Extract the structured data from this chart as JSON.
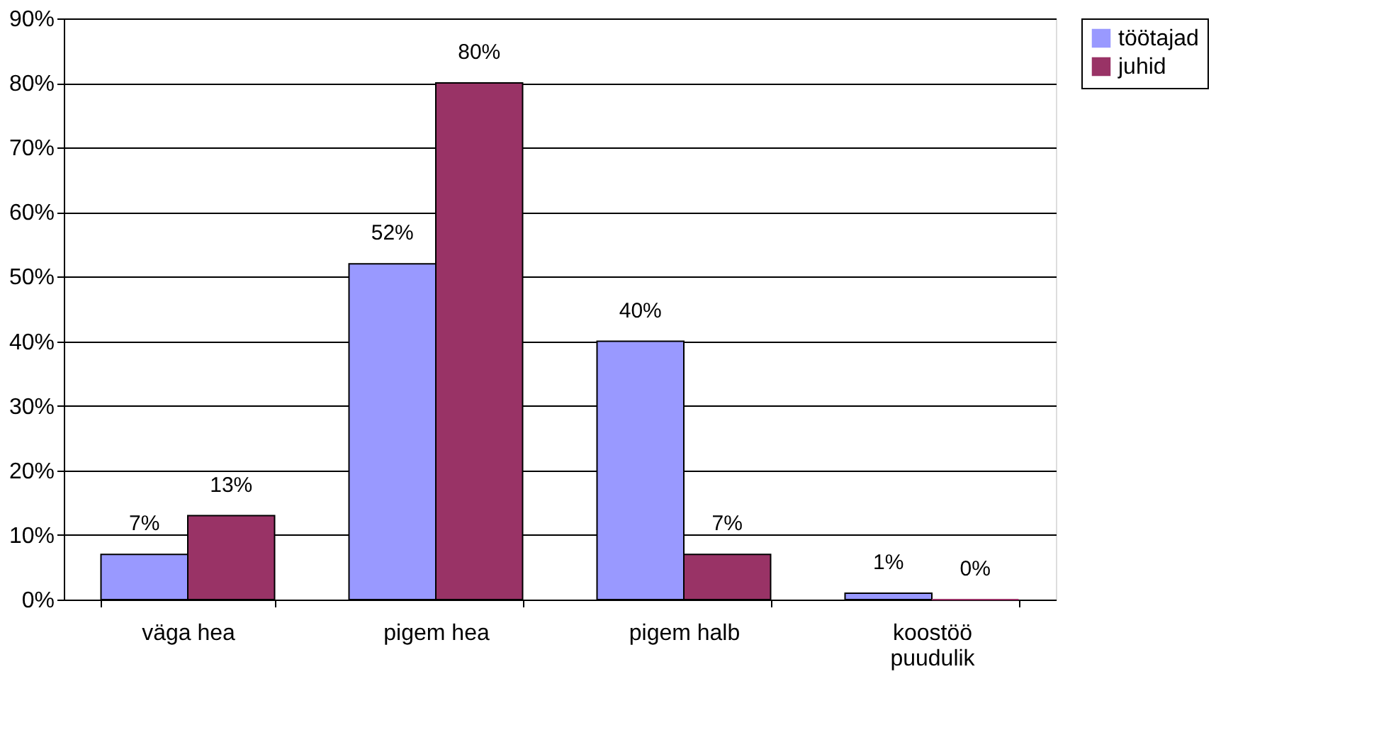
{
  "chart_data": {
    "type": "bar",
    "categories": [
      "väga hea",
      "pigem hea",
      "pigem halb",
      "koostöö\npuudulik"
    ],
    "series": [
      {
        "name": "töötajad",
        "color": "#9999ff",
        "values": [
          7,
          52,
          40,
          1
        ],
        "value_labels": [
          "7%",
          "52%",
          "40%",
          "1%"
        ]
      },
      {
        "name": "juhid",
        "color": "#993366",
        "values": [
          13,
          80,
          7,
          0
        ],
        "value_labels": [
          "13%",
          "80%",
          "7%",
          "0%"
        ]
      }
    ],
    "ylim": [
      0,
      90
    ],
    "yticks": [
      {
        "value": 0,
        "label": "0%"
      },
      {
        "value": 10,
        "label": "10%"
      },
      {
        "value": 20,
        "label": "20%"
      },
      {
        "value": 30,
        "label": "30%"
      },
      {
        "value": 40,
        "label": "40%"
      },
      {
        "value": 50,
        "label": "50%"
      },
      {
        "value": 60,
        "label": "60%"
      },
      {
        "value": 70,
        "label": "70%"
      },
      {
        "value": 80,
        "label": "80%"
      },
      {
        "value": 90,
        "label": "90%"
      }
    ],
    "grid": "y",
    "legend": "right"
  }
}
